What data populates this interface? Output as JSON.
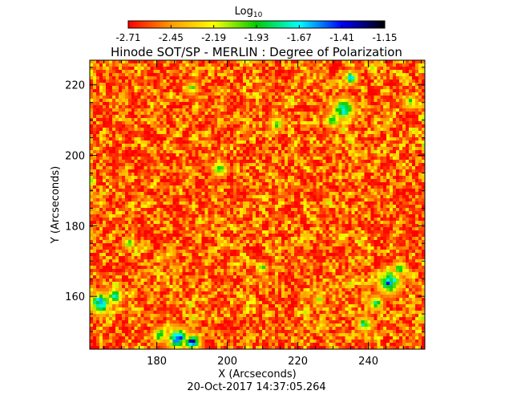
{
  "chart_data": {
    "type": "heatmap",
    "title": "Hinode SOT/SP - MERLIN : Degree of Polarization",
    "xlabel": "X (Arcseconds)",
    "ylabel": "Y (Arcseconds)",
    "timestamp": "20-Oct-2017 14:37:05.264",
    "xlim": [
      161,
      256
    ],
    "ylim": [
      145,
      227
    ],
    "xticks": [
      180,
      200,
      220,
      240
    ],
    "yticks": [
      160,
      180,
      200,
      220
    ],
    "colorbar": {
      "label_base": "Log",
      "label_sub": "10",
      "min": -2.71,
      "max": -1.15,
      "ticks": [
        "-2.71",
        "-2.45",
        "-2.19",
        "-1.93",
        "-1.67",
        "-1.41",
        "-1.15"
      ],
      "colormap": [
        "#ff0000",
        "#ff9900",
        "#ffff00",
        "#00cc00",
        "#00ffff",
        "#0000ff",
        "#000000"
      ]
    },
    "features": [
      {
        "x": 164,
        "y": 158,
        "r": 3.0,
        "v": -1.6
      },
      {
        "x": 168,
        "y": 160,
        "r": 2.2,
        "v": -1.75
      },
      {
        "x": 186,
        "y": 148,
        "r": 3.0,
        "v": -1.55
      },
      {
        "x": 190,
        "y": 147,
        "r": 2.2,
        "v": -1.4
      },
      {
        "x": 181,
        "y": 149,
        "r": 2.0,
        "v": -1.8
      },
      {
        "x": 233,
        "y": 213,
        "r": 3.0,
        "v": -1.7
      },
      {
        "x": 235,
        "y": 222,
        "r": 1.8,
        "v": -1.6
      },
      {
        "x": 230,
        "y": 210,
        "r": 2.0,
        "v": -1.8
      },
      {
        "x": 246,
        "y": 164,
        "r": 3.2,
        "v": -1.6
      },
      {
        "x": 242,
        "y": 158,
        "r": 2.0,
        "v": -1.85
      },
      {
        "x": 239,
        "y": 152,
        "r": 2.0,
        "v": -1.8
      },
      {
        "x": 249,
        "y": 168,
        "r": 1.8,
        "v": -1.9
      },
      {
        "x": 198,
        "y": 196,
        "r": 2.0,
        "v": -1.85
      },
      {
        "x": 190,
        "y": 219,
        "r": 1.6,
        "v": -1.95
      },
      {
        "x": 210,
        "y": 168,
        "r": 1.5,
        "v": -2.0
      },
      {
        "x": 172,
        "y": 175,
        "r": 1.6,
        "v": -1.95
      },
      {
        "x": 214,
        "y": 209,
        "r": 1.8,
        "v": -1.9
      },
      {
        "x": 252,
        "y": 215,
        "r": 1.8,
        "v": -1.95
      },
      {
        "x": 226,
        "y": 159,
        "r": 1.5,
        "v": -2.0
      }
    ]
  }
}
